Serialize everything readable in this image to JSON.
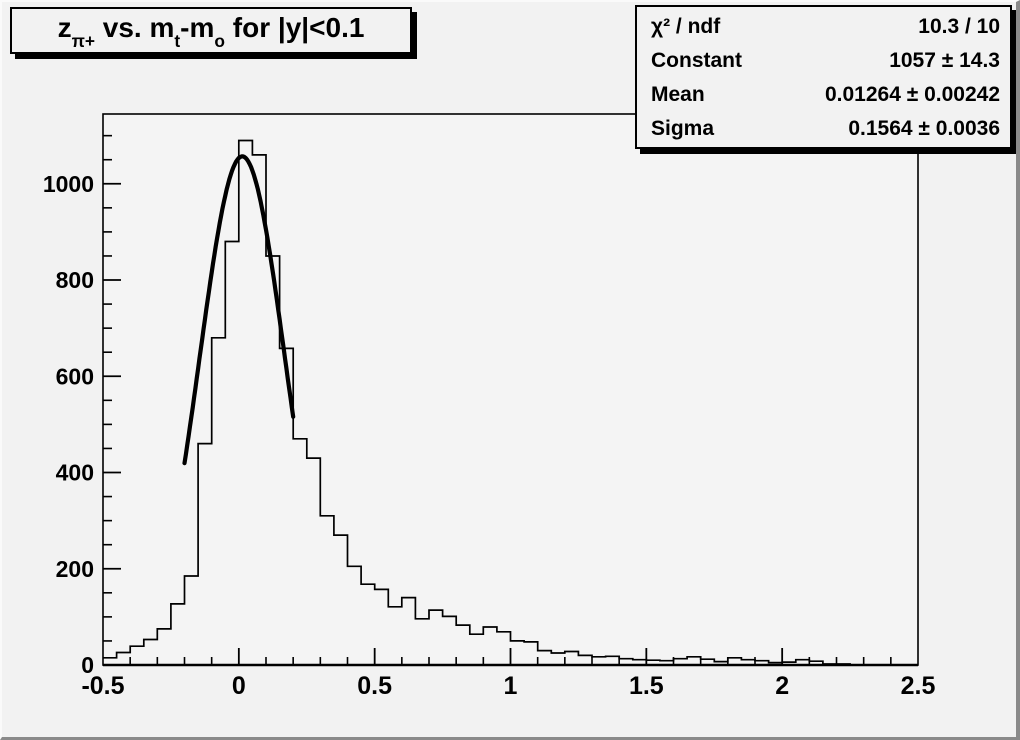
{
  "title": {
    "p1": "z",
    "s1": "π+",
    "p2": " vs. m",
    "s2": "t",
    "p3": "-m",
    "s3": "o",
    "p4": " for |y|<0.1"
  },
  "stats": {
    "rows": [
      {
        "label": "χ² / ndf",
        "value": "10.3 / 10"
      },
      {
        "label": "Constant",
        "value": "1057 ± 14.3"
      },
      {
        "label": "Mean",
        "value": "0.01264 ± 0.00242"
      },
      {
        "label": "Sigma",
        "value": "0.1564 ± 0.0036"
      }
    ]
  },
  "colors": {
    "canvas_bg": "#f2f2f2",
    "frame_line": "#000000",
    "histogram_line": "#000000",
    "fit_line": "#000000",
    "text": "#000000"
  },
  "chart_data": {
    "type": "bar",
    "title": "z_{π+} vs. m_t-m_o for |y|<0.1",
    "xlabel": "",
    "ylabel": "",
    "xlim": [
      -0.5,
      2.5
    ],
    "ylim": [
      0,
      1145
    ],
    "grid": "off",
    "legend": "none",
    "x_ticks_major": [
      -0.5,
      0,
      0.5,
      1,
      1.5,
      2,
      2.5
    ],
    "x_tick_labels": [
      "-0.5",
      "0",
      "0.5",
      "1",
      "1.5",
      "2",
      "2.5"
    ],
    "x_minor_step": 0.1,
    "y_ticks_major": [
      0,
      200,
      400,
      600,
      800,
      1000
    ],
    "y_tick_labels": [
      "0",
      "200",
      "400",
      "600",
      "800",
      "1000"
    ],
    "y_minor_step": 50,
    "bin_start": -0.5,
    "bin_width": 0.05,
    "bin_counts": [
      15,
      26,
      39,
      53,
      75,
      127,
      185,
      460,
      680,
      880,
      1090,
      1060,
      850,
      658,
      470,
      430,
      310,
      270,
      205,
      168,
      157,
      121,
      140,
      96,
      114,
      101,
      83,
      64,
      79,
      69,
      50,
      48,
      30,
      25,
      28,
      20,
      17,
      18,
      13,
      11,
      10,
      9,
      13,
      17,
      12,
      7,
      15,
      11,
      9,
      5,
      6,
      11,
      8,
      2,
      2,
      0,
      0,
      0,
      0,
      0
    ],
    "fit": {
      "type": "gaussian",
      "constant": 1057,
      "mean": 0.01264,
      "sigma": 0.1564,
      "draw_range": [
        -0.2,
        0.2
      ]
    }
  }
}
